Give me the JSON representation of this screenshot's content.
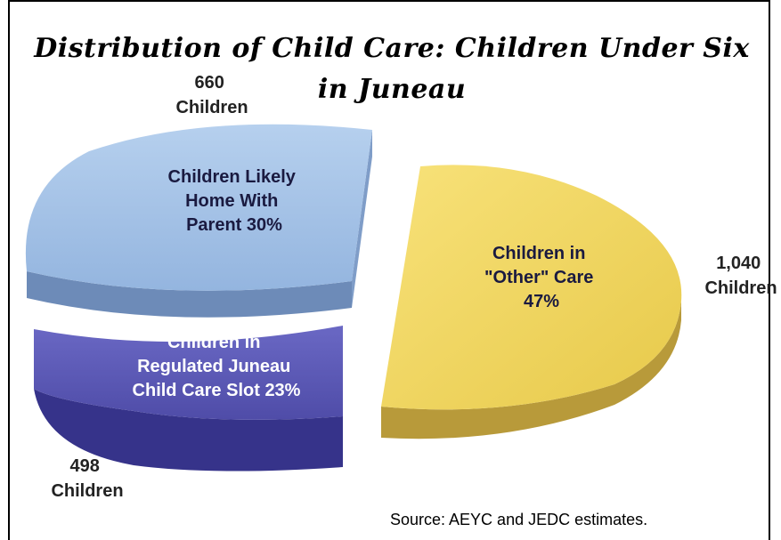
{
  "chart_data": {
    "type": "pie",
    "title": "Distribution of Child Care: Children Under Six in Juneau",
    "slices": [
      {
        "label": [
          "Children Likely",
          "Home With",
          "Parent 30%"
        ],
        "count_label": [
          "660",
          "Children"
        ],
        "percent": 30,
        "children": 660,
        "color": "#a3c1e6"
      },
      {
        "label": [
          "Children in",
          "\"Other\" Care",
          "47%"
        ],
        "count_label": [
          "1,040",
          "Children"
        ],
        "percent": 47,
        "children": 1040,
        "color": "#f0d45c"
      },
      {
        "label": [
          "Children in",
          "Regulated  Juneau",
          "Child Care Slot 23%"
        ],
        "count_label": [
          "498",
          "Children"
        ],
        "percent": 23,
        "children": 498,
        "color": "#5a57b3"
      }
    ]
  },
  "source": "Source:  AEYC and JEDC estimates."
}
